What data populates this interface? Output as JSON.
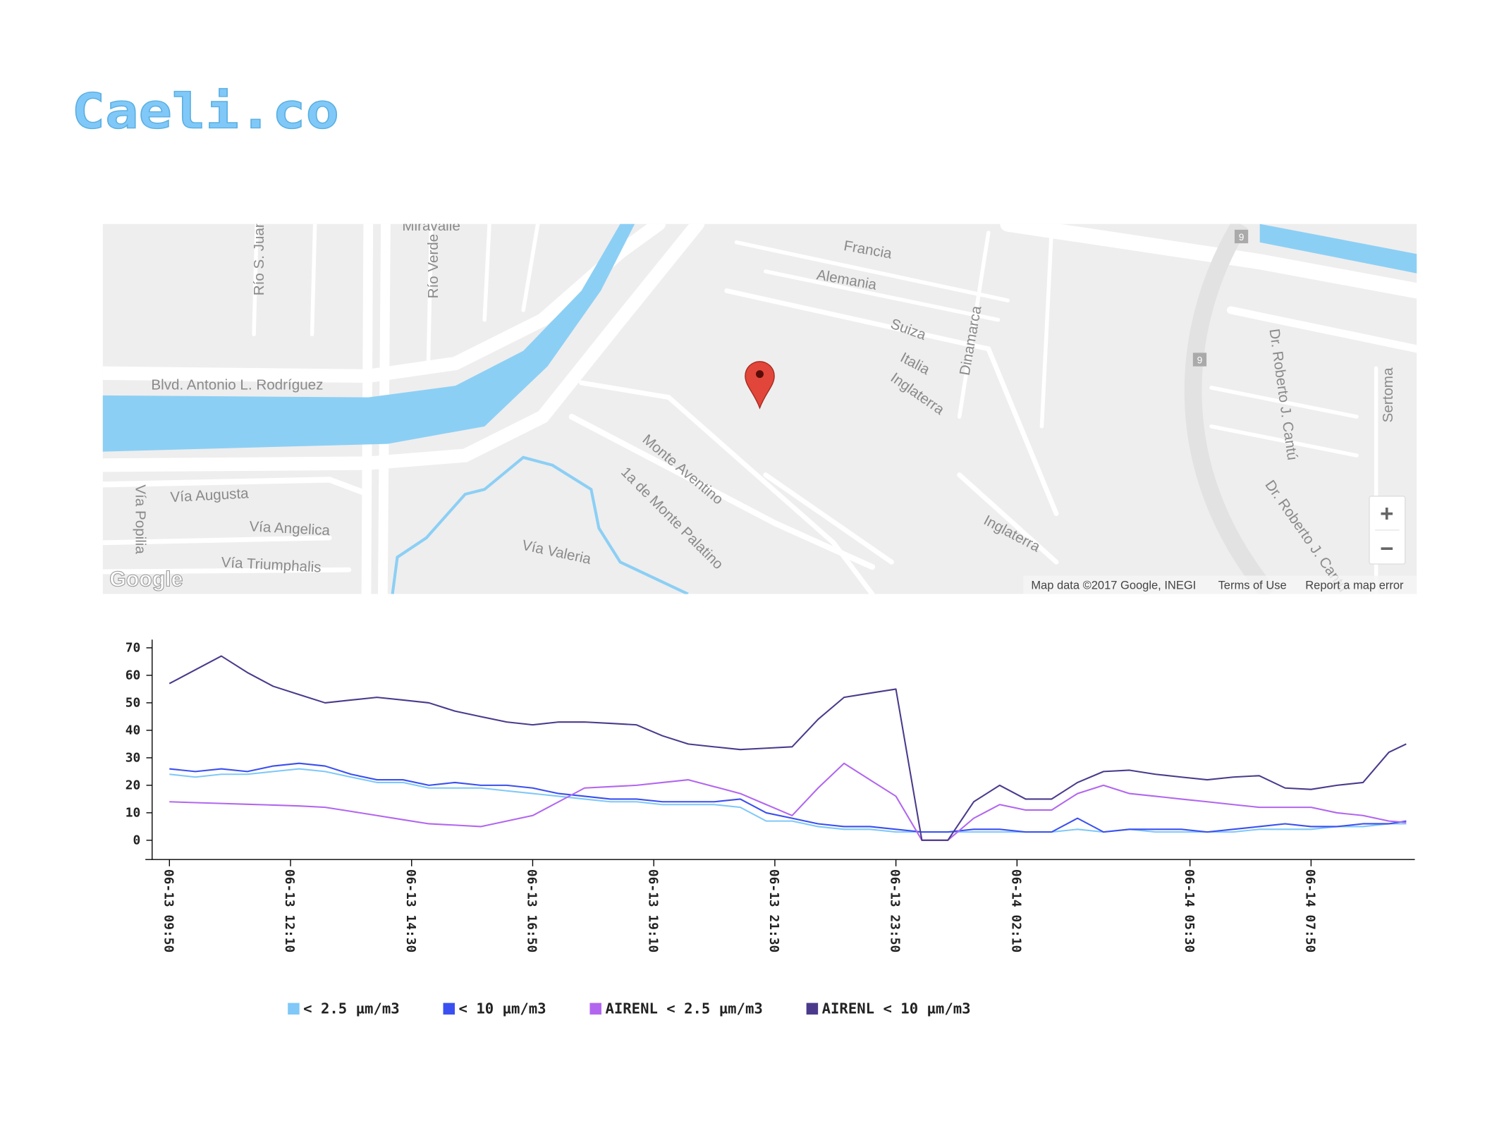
{
  "header": {
    "title": "Caeli.co"
  },
  "map": {
    "labels": [
      "Río S. Juan",
      "Río Verde",
      "Miravalle",
      "Blvd. Antonio L. Rodríguez",
      "Vía Augusta",
      "Vía Angelica",
      "Vía Triumphalis",
      "Vía Popilia",
      "Vía Valeria",
      "Monte Aventino",
      "1a de Monte Palatino",
      "Francia",
      "Alemania",
      "Suiza",
      "Italia",
      "Inglaterra",
      "Inglaterra",
      "Dinamarca",
      "Dr. Roberto J. Cantú",
      "Dr. Roberto J. Cantú",
      "Sertoma",
      "9",
      "9"
    ],
    "logo": "Google",
    "attribution": "Map data ©2017 Google, INEGI",
    "terms": "Terms of Use",
    "report": "Report a map error",
    "zoom_in": "+",
    "zoom_out": "−"
  },
  "chart_data": {
    "type": "line",
    "x": [
      "06-13 09:50",
      "06-13 10:20",
      "06-13 10:50",
      "06-13 11:20",
      "06-13 11:50",
      "06-13 12:20",
      "06-13 12:50",
      "06-13 13:20",
      "06-13 13:50",
      "06-13 14:20",
      "06-13 14:50",
      "06-13 15:20",
      "06-13 15:50",
      "06-13 16:20",
      "06-13 16:50",
      "06-13 17:20",
      "06-13 17:50",
      "06-13 18:20",
      "06-13 18:50",
      "06-13 19:20",
      "06-13 19:50",
      "06-13 20:20",
      "06-13 20:50",
      "06-13 21:20",
      "06-13 21:50",
      "06-13 22:20",
      "06-13 22:50",
      "06-13 23:20",
      "06-13 23:50",
      "06-14 00:20",
      "06-14 00:50",
      "06-14 01:20",
      "06-14 01:50",
      "06-14 02:20",
      "06-14 02:50",
      "06-14 03:20",
      "06-14 03:50",
      "06-14 04:20",
      "06-14 04:50",
      "06-14 05:20",
      "06-14 05:50",
      "06-14 06:20",
      "06-14 06:50",
      "06-14 07:20",
      "06-14 07:50",
      "06-14 08:20",
      "06-14 08:50",
      "06-14 09:20",
      "06-14 09:40"
    ],
    "series": [
      {
        "name": "< 2.5 µm/m3",
        "color": "#7fc8f8",
        "values": [
          24,
          23,
          24,
          24,
          25,
          26,
          25,
          23,
          21,
          21,
          19,
          19,
          19,
          18,
          17,
          16,
          15,
          14,
          14,
          13,
          13,
          13,
          12,
          7,
          7,
          5,
          4,
          4,
          3,
          3,
          3,
          3,
          3,
          3,
          3,
          4,
          3,
          4,
          3,
          3,
          3,
          3,
          4,
          4,
          4,
          5,
          5,
          6,
          6
        ]
      },
      {
        "name": "< 10 µm/m3",
        "color": "#3a4ff0",
        "values": [
          26,
          25,
          26,
          25,
          27,
          28,
          27,
          24,
          22,
          22,
          20,
          21,
          20,
          20,
          19,
          17,
          16,
          15,
          15,
          14,
          14,
          14,
          15,
          10,
          8,
          6,
          5,
          5,
          4,
          3,
          3,
          4,
          4,
          3,
          3,
          8,
          3,
          4,
          4,
          4,
          3,
          4,
          5,
          6,
          5,
          5,
          6,
          6,
          7
        ]
      },
      {
        "name": "AIRENL < 2.5 µm/m3",
        "color": "#b266f0",
        "values": [
          14,
          13.7,
          13.4,
          13.1,
          12.8,
          12.5,
          12,
          10.5,
          9,
          7.5,
          6,
          5.5,
          5,
          7,
          9,
          14,
          19,
          19.5,
          20,
          21,
          22,
          19.5,
          17,
          13,
          9,
          19,
          28,
          22,
          16,
          0,
          0,
          8,
          13,
          11,
          11,
          17,
          20,
          17,
          16,
          15,
          14,
          13,
          12,
          12,
          12,
          10,
          9,
          7,
          6.5
        ]
      },
      {
        "name": "AIRENL < 10 µm/m3",
        "color": "#4b3a8c",
        "values": [
          57,
          62,
          67,
          61,
          56,
          53,
          50,
          51,
          52,
          51,
          50,
          47,
          45,
          43,
          42,
          43,
          43,
          42.5,
          42,
          38,
          35,
          34,
          33,
          33.5,
          34,
          44,
          52,
          53.5,
          55,
          0,
          0,
          14,
          20,
          15,
          15,
          21,
          25,
          25.5,
          24,
          23,
          22,
          23,
          23.5,
          19,
          18.5,
          20,
          21,
          32,
          35
        ]
      }
    ],
    "xlim": [
      "06-13 09:30",
      "06-14 09:50"
    ],
    "xticks": [
      "06-13 09:50",
      "06-13 12:10",
      "06-13 14:30",
      "06-13 16:50",
      "06-13 19:10",
      "06-13 21:30",
      "06-13 23:50",
      "06-14 02:10",
      "06-14 05:30",
      "06-14 07:50"
    ],
    "ylim": [
      -7,
      73
    ],
    "yticks": [
      0,
      10,
      20,
      30,
      40,
      50,
      60,
      70
    ],
    "legend": "bottom"
  }
}
